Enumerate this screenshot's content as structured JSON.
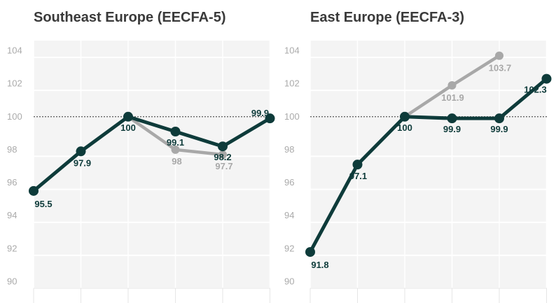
{
  "chart_data": [
    {
      "type": "line",
      "title": "Southeast Europe (EECFA-5)",
      "xlabel": "",
      "ylabel": "",
      "ylim": [
        90,
        104
      ],
      "yticks": [
        90,
        92,
        94,
        96,
        98,
        100,
        102,
        104
      ],
      "reference_line": 100,
      "grid": true,
      "x": [
        0,
        1,
        2,
        3,
        4,
        5
      ],
      "series": [
        {
          "color": "#a8a8a8",
          "x": [
            2,
            3,
            4
          ],
          "values": [
            100,
            98,
            97.7
          ],
          "labels": [
            "",
            "98",
            "97.7"
          ]
        },
        {
          "color": "#0e3b3a",
          "x": [
            0,
            1,
            2,
            3,
            4,
            5
          ],
          "values": [
            95.5,
            97.9,
            100,
            99.1,
            98.2,
            99.9
          ],
          "labels": [
            "95.5",
            "97.9",
            "100",
            "99.1",
            "98.2",
            "99.9"
          ]
        }
      ]
    },
    {
      "type": "line",
      "title": "East Europe (EECFA-3)",
      "xlabel": "",
      "ylabel": "",
      "ylim": [
        90,
        104
      ],
      "yticks": [
        90,
        92,
        94,
        96,
        98,
        100,
        102,
        104
      ],
      "reference_line": 100,
      "grid": true,
      "x": [
        0,
        1,
        2,
        3,
        4,
        5
      ],
      "series": [
        {
          "color": "#a8a8a8",
          "x": [
            2,
            3,
            4
          ],
          "values": [
            100,
            101.9,
            103.7
          ],
          "labels": [
            "",
            "101.9",
            "103.7"
          ]
        },
        {
          "color": "#0e3b3a",
          "x": [
            0,
            1,
            2,
            3,
            4,
            5
          ],
          "values": [
            91.8,
            97.1,
            100,
            99.9,
            99.9,
            102.3
          ],
          "labels": [
            "91.8",
            "97.1",
            "100",
            "99.9",
            "99.9",
            "102.3"
          ]
        }
      ]
    }
  ]
}
